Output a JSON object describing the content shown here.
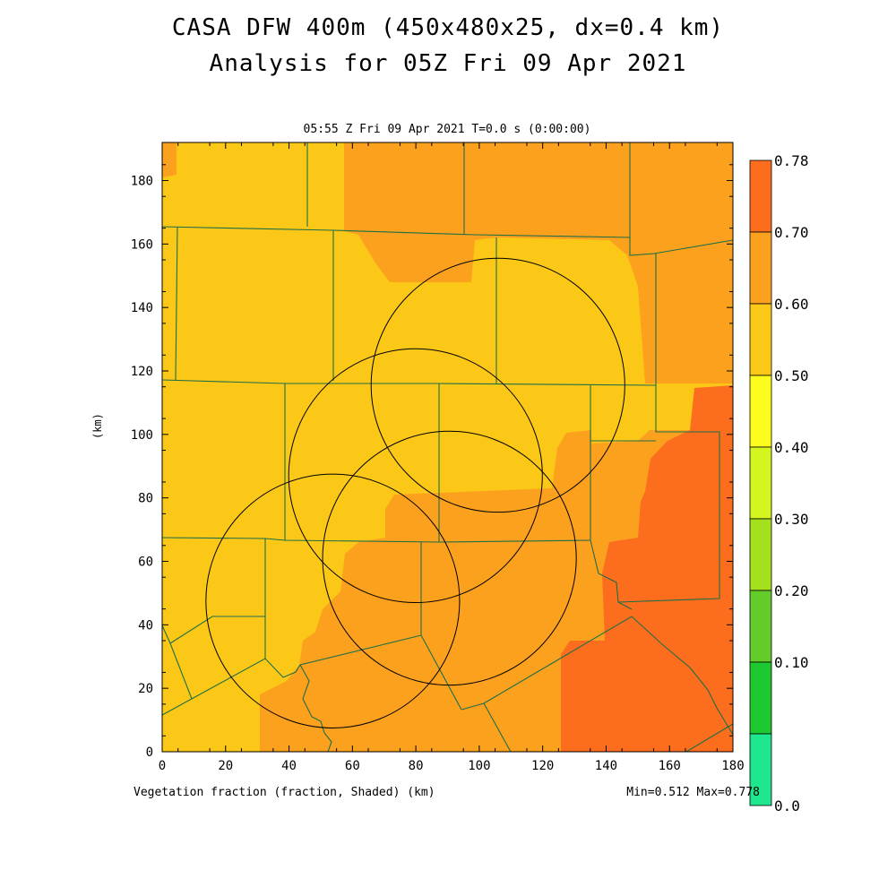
{
  "title": "CASA DFW 400m (450x480x25, dx=0.4 km)",
  "subtitle": "Analysis for 05Z Fri 09 Apr 2021",
  "time_label": "05:55 Z Fri 09 Apr 2021   T=0.0 s (0:00:00)",
  "footer_left": "Vegetation fraction (fraction, Shaded)  (km)",
  "footer_right": "Min=0.512 Max=0.778",
  "ylabel": "(km)",
  "colors": {
    "c050_060": "#fcc818",
    "c060_070": "#fca11e",
    "c070_078": "#fc6e1e",
    "boundary": "#1e6e46",
    "range_ring": "#000000"
  },
  "chart_data": {
    "type": "heatmap",
    "xlabel": "(km)",
    "ylabel": "(km)",
    "xlim": [
      0,
      180
    ],
    "ylim": [
      0,
      192
    ],
    "x_ticks": [
      "0",
      "20",
      "40",
      "60",
      "80",
      "100",
      "120",
      "140",
      "160",
      "180"
    ],
    "y_ticks": [
      "0",
      "20",
      "40",
      "60",
      "80",
      "100",
      "120",
      "140",
      "160",
      "180"
    ],
    "min": 0.512,
    "max": 0.778,
    "colorbar": {
      "labels": [
        "0.78",
        "0.70",
        "0.60",
        "0.50",
        "0.40",
        "0.30",
        "0.20",
        "0.10",
        "0.0"
      ],
      "colors": [
        "#fc6e1e",
        "#fca11e",
        "#fcc818",
        "#fcfc1e",
        "#d4f51e",
        "#a5e01e",
        "#64cc2a",
        "#1ec830",
        "#1ee68c"
      ]
    },
    "range_rings": [
      {
        "cx": 79.9,
        "cy": 87.0,
        "r": 40.0
      },
      {
        "cx": 105.9,
        "cy": 115.5,
        "r": 40.0
      },
      {
        "cx": 53.8,
        "cy": 47.5,
        "r": 40.0
      },
      {
        "cx": 90.6,
        "cy": 61.0,
        "r": 40.0
      }
    ]
  }
}
